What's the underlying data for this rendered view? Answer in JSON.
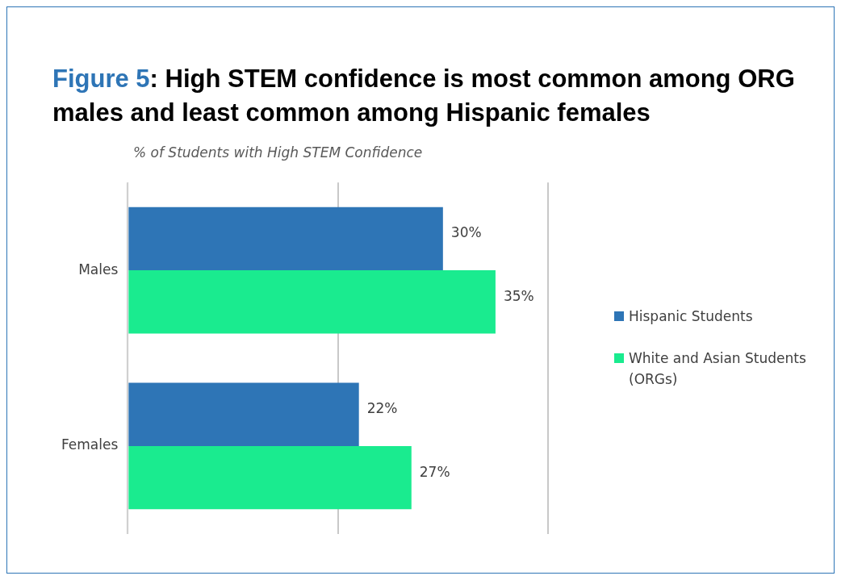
{
  "chart_data": {
    "type": "bar",
    "orientation": "horizontal",
    "title": "Figure 5: High STEM confidence is most common among ORG males and least common among Hispanic females",
    "subtitle": "% of Students with High STEM Confidence",
    "categories": [
      "Males",
      "Females"
    ],
    "series": [
      {
        "name": "Hispanic Students",
        "color": "#2e75b6",
        "values": [
          30,
          22
        ],
        "value_labels": [
          "30%",
          "22%"
        ]
      },
      {
        "name": "White and Asian Students (ORGs)",
        "color": "#1aeb8f",
        "values": [
          35,
          27
        ],
        "value_labels": [
          "35%",
          "27%"
        ]
      }
    ],
    "xlim": [
      0,
      40
    ],
    "xticks": [
      {
        "value": 0,
        "label": null
      },
      {
        "value": 20,
        "label": null
      },
      {
        "value": 40,
        "label": null
      }
    ],
    "tick_labels": "y",
    "grid": "x",
    "legend": "right"
  }
}
